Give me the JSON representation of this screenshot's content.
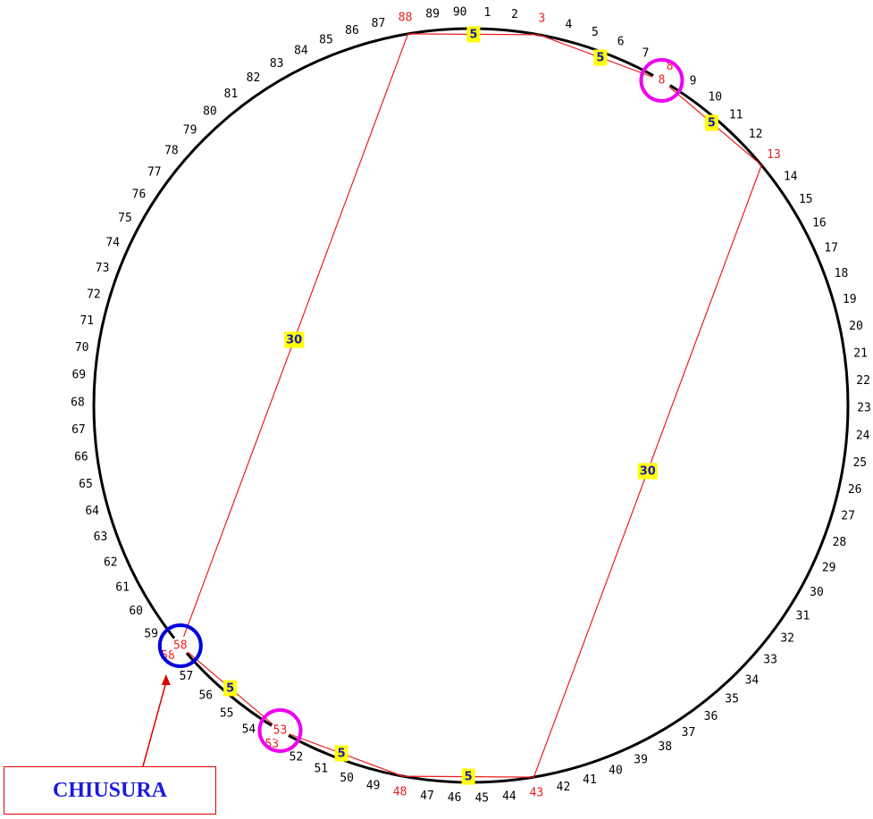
{
  "numbers": [
    "1",
    "2",
    "3",
    "4",
    "5",
    "6",
    "7",
    "8",
    "9",
    "10",
    "11",
    "12",
    "13",
    "14",
    "15",
    "16",
    "17",
    "18",
    "19",
    "20",
    "21",
    "22",
    "23",
    "24",
    "25",
    "26",
    "27",
    "28",
    "29",
    "30",
    "31",
    "32",
    "33",
    "34",
    "35",
    "36",
    "37",
    "38",
    "39",
    "40",
    "41",
    "42",
    "43",
    "44",
    "45",
    "46",
    "47",
    "48",
    "49",
    "50",
    "51",
    "52",
    "53",
    "54",
    "55",
    "56",
    "57",
    "58",
    "59",
    "60",
    "61",
    "62",
    "63",
    "64",
    "65",
    "66",
    "67",
    "68",
    "69",
    "70",
    "71",
    "72",
    "73",
    "74",
    "75",
    "76",
    "77",
    "78",
    "79",
    "80",
    "81",
    "82",
    "83",
    "84",
    "85",
    "86",
    "87",
    "88",
    "89",
    "90"
  ],
  "highlighted_numbers": [
    "3",
    "8",
    "13",
    "43",
    "48",
    "53",
    "58",
    "88"
  ],
  "path_sequence": [
    "88",
    "3",
    "8",
    "13",
    "43",
    "48",
    "53",
    "58",
    "88"
  ],
  "distance_badges": [
    "5",
    "5",
    "5",
    "30",
    "5",
    "5",
    "5",
    "30"
  ],
  "circled": [
    {
      "number": "8",
      "color": "#ee00ee"
    },
    {
      "number": "53",
      "color": "#ee00ee"
    },
    {
      "number": "58",
      "color": "#0000dd"
    }
  ],
  "callout": {
    "label": "CHIUSURA",
    "points_to": "58"
  },
  "colors": {
    "ring": "#000000",
    "path": "#ee1c1c",
    "number": "#000000",
    "highlight_number": "#ee1c1c",
    "badge_bg": "#ffff00",
    "badge_text": "#1a1ab0",
    "callout": "#e00000",
    "callout_text": "#1a1ae0"
  }
}
